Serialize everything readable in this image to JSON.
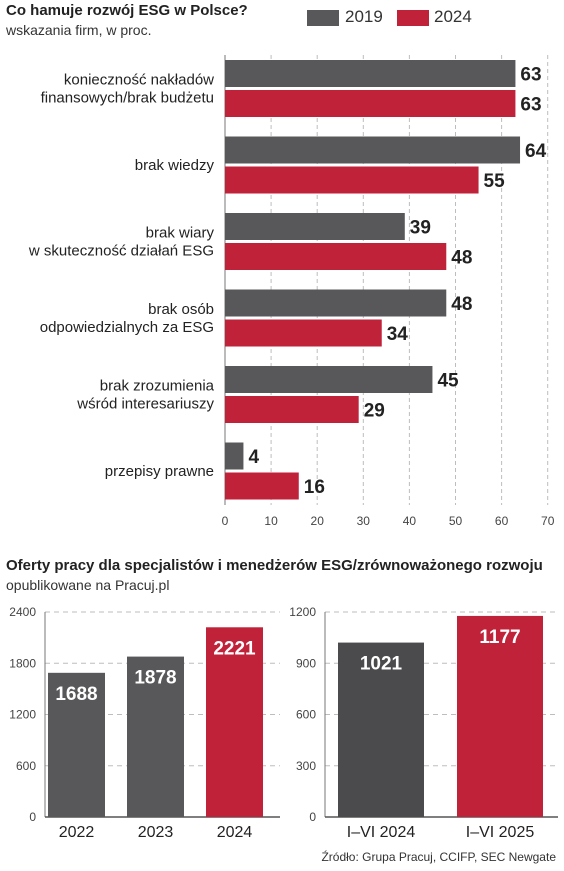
{
  "chart1": {
    "title": "Co hamuje rozwój ESG w Polsce?",
    "subtitle": "wskazania firm, w proc.",
    "colors": {
      "2019": "#58585a",
      "2024": "#c0223a"
    },
    "chart_data": {
      "type": "bar",
      "orientation": "horizontal",
      "categories": [
        [
          "konieczność nakładów",
          "finansowych/brak budżetu"
        ],
        [
          "brak wiedzy"
        ],
        [
          "brak wiary",
          "w skuteczność działań ESG"
        ],
        [
          "brak osób",
          "odpowiedzialnych za ESG"
        ],
        [
          "brak zrozumienia",
          "wśród interesariuszy"
        ],
        [
          "przepisy prawne"
        ]
      ],
      "series": [
        {
          "name": "2019",
          "values": [
            63,
            64,
            39,
            48,
            45,
            4
          ]
        },
        {
          "name": "2024",
          "values": [
            63,
            55,
            48,
            34,
            29,
            16
          ]
        }
      ],
      "xlim": [
        0,
        70
      ],
      "xticks": [
        "0",
        "10",
        "20",
        "30",
        "40",
        "50",
        "60",
        "70"
      ],
      "legend": "top-right"
    }
  },
  "chart2": {
    "title": "Oferty pracy dla specjalistów i menedżerów ESG/zrównoważonego rozwoju",
    "subtitle": "opublikowane na Pracuj.pl",
    "chart_data": [
      {
        "type": "bar",
        "categories": [
          "2022",
          "2023",
          "2024"
        ],
        "values": [
          1688,
          1878,
          2221
        ],
        "colors": [
          "#58585a",
          "#58585a",
          "#c0223a"
        ],
        "ylim": [
          0,
          2400
        ],
        "yticks": [
          "0",
          "600",
          "1200",
          "1800",
          "2400"
        ]
      },
      {
        "type": "bar",
        "categories": [
          "I–VI 2024",
          "I–VI 2025"
        ],
        "values": [
          1021,
          1177
        ],
        "colors": [
          "#4b4a4c",
          "#c0223a"
        ],
        "ylim": [
          0,
          1200
        ],
        "yticks": [
          "0",
          "300",
          "600",
          "900",
          "1200"
        ]
      }
    ]
  },
  "source": "Źródło: Grupa Pracuj, CCIFP, SEC Newgate"
}
